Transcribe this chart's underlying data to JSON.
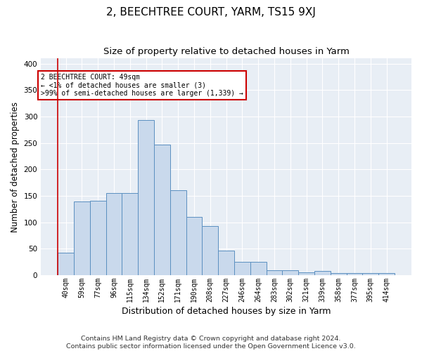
{
  "title": "2, BEECHTREE COURT, YARM, TS15 9XJ",
  "subtitle": "Size of property relative to detached houses in Yarm",
  "xlabel": "Distribution of detached houses by size in Yarm",
  "ylabel": "Number of detached properties",
  "bin_labels": [
    "40sqm",
    "59sqm",
    "77sqm",
    "96sqm",
    "115sqm",
    "134sqm",
    "152sqm",
    "171sqm",
    "190sqm",
    "208sqm",
    "227sqm",
    "246sqm",
    "264sqm",
    "283sqm",
    "302sqm",
    "321sqm",
    "339sqm",
    "358sqm",
    "377sqm",
    "395sqm",
    "414sqm"
  ],
  "bar_heights": [
    42,
    140,
    141,
    155,
    155,
    293,
    247,
    161,
    110,
    93,
    47,
    25,
    25,
    9,
    9,
    6,
    8,
    4,
    4,
    4,
    4
  ],
  "bar_color": "#c9d9ec",
  "bar_edge_color": "#5b8fc0",
  "annotation_title": "2 BEECHTREE COURT: 49sqm",
  "annotation_line1": "← <1% of detached houses are smaller (3)",
  "annotation_line2": ">99% of semi-detached houses are larger (1,339) →",
  "annotation_box_color": "#ffffff",
  "annotation_box_edge": "#cc0000",
  "red_line_color": "#cc0000",
  "footnote1": "Contains HM Land Registry data © Crown copyright and database right 2024.",
  "footnote2": "Contains public sector information licensed under the Open Government Licence v3.0.",
  "ylim": [
    0,
    410
  ],
  "yticks": [
    0,
    50,
    100,
    150,
    200,
    250,
    300,
    350,
    400
  ],
  "background_color": "#e8eef5",
  "grid_color": "#ffffff",
  "fig_background": "#ffffff",
  "title_fontsize": 11,
  "subtitle_fontsize": 9.5,
  "xlabel_fontsize": 9,
  "ylabel_fontsize": 8.5,
  "tick_fontsize": 7,
  "annotation_fontsize": 7,
  "footnote_fontsize": 6.8
}
